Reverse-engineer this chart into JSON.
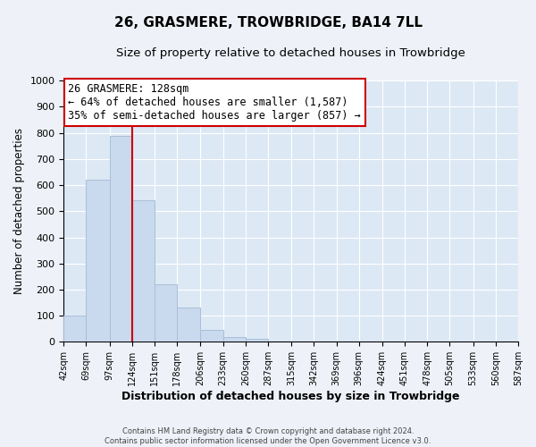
{
  "title": "26, GRASMERE, TROWBRIDGE, BA14 7LL",
  "subtitle": "Size of property relative to detached houses in Trowbridge",
  "xlabel": "Distribution of detached houses by size in Trowbridge",
  "ylabel": "Number of detached properties",
  "footer_line1": "Contains HM Land Registry data © Crown copyright and database right 2024.",
  "footer_line2": "Contains public sector information licensed under the Open Government Licence v3.0.",
  "bin_edges": [
    42,
    69,
    97,
    124,
    151,
    178,
    206,
    233,
    260,
    287,
    315,
    342,
    369,
    396,
    424,
    451,
    478,
    505,
    533,
    560,
    587
  ],
  "bar_heights": [
    100,
    622,
    787,
    543,
    220,
    133,
    44,
    17,
    10,
    0,
    0,
    0,
    0,
    0,
    0,
    0,
    0,
    0,
    0,
    0
  ],
  "bar_color": "#c9d9ee",
  "bar_edgecolor": "#a8bfd8",
  "vline_x": 124,
  "vline_color": "#cc0000",
  "annotation_line1": "26 GRASMERE: 128sqm",
  "annotation_line2": "← 64% of detached houses are smaller (1,587)",
  "annotation_line3": "35% of semi-detached houses are larger (857) →",
  "annotation_box_edgecolor": "#cc0000",
  "annotation_box_facecolor": "#ffffff",
  "ylim": [
    0,
    1000
  ],
  "yticks": [
    0,
    100,
    200,
    300,
    400,
    500,
    600,
    700,
    800,
    900,
    1000
  ],
  "grid_color": "#ffffff",
  "plot_bg_color": "#dde8f5",
  "fig_bg_color": "#eef2f8",
  "title_fontsize": 11,
  "subtitle_fontsize": 9.5,
  "annotation_fontsize": 8.5
}
